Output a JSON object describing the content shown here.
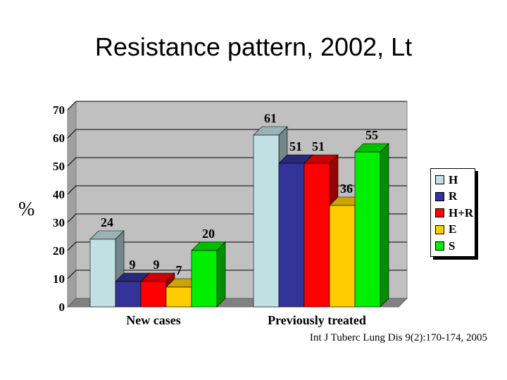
{
  "slide_title": "Resistance pattern, 2002, Lt",
  "citation": "Int J Tuberc Lung Dis 9(2):170-174, 2005",
  "colors": {
    "H": "#c0e0e4",
    "R": "#333399",
    "H+R": "#ff0000",
    "E": "#ffcc00",
    "S": "#00ee00"
  },
  "chart_data": {
    "type": "bar",
    "title": "",
    "xlabel": "",
    "ylabel": "%",
    "ylim": [
      0,
      70
    ],
    "yticks": [
      0,
      10,
      20,
      30,
      40,
      50,
      60,
      70
    ],
    "categories": [
      "New cases",
      "Previously treated"
    ],
    "series": [
      {
        "name": "H",
        "values": [
          24,
          61
        ]
      },
      {
        "name": "R",
        "values": [
          9,
          51
        ]
      },
      {
        "name": "H+R",
        "values": [
          9,
          51
        ]
      },
      {
        "name": "E",
        "values": [
          7,
          36
        ]
      },
      {
        "name": "S",
        "values": [
          20,
          55
        ]
      }
    ],
    "legend_position": "right",
    "grid": true,
    "style": "3d-bars"
  }
}
